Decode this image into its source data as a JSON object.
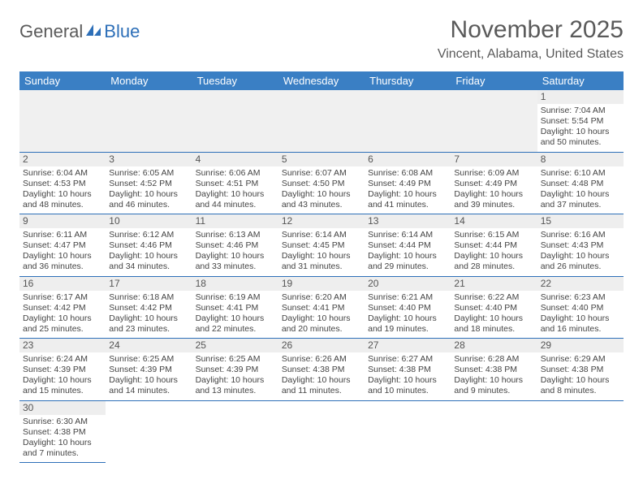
{
  "logo": {
    "part1": "General",
    "part2": "Blue"
  },
  "title": "November 2025",
  "location": "Vincent, Alabama, United States",
  "day_headers": [
    "Sunday",
    "Monday",
    "Tuesday",
    "Wednesday",
    "Thursday",
    "Friday",
    "Saturday"
  ],
  "colors": {
    "header_bg": "#3a7fc4",
    "rule": "#2d6fb8",
    "daynum_bg": "#eeeeee"
  },
  "weeks": [
    [
      null,
      null,
      null,
      null,
      null,
      null,
      {
        "n": "1",
        "sr": "Sunrise: 7:04 AM",
        "ss": "Sunset: 5:54 PM",
        "d1": "Daylight: 10 hours",
        "d2": "and 50 minutes."
      }
    ],
    [
      {
        "n": "2",
        "sr": "Sunrise: 6:04 AM",
        "ss": "Sunset: 4:53 PM",
        "d1": "Daylight: 10 hours",
        "d2": "and 48 minutes."
      },
      {
        "n": "3",
        "sr": "Sunrise: 6:05 AM",
        "ss": "Sunset: 4:52 PM",
        "d1": "Daylight: 10 hours",
        "d2": "and 46 minutes."
      },
      {
        "n": "4",
        "sr": "Sunrise: 6:06 AM",
        "ss": "Sunset: 4:51 PM",
        "d1": "Daylight: 10 hours",
        "d2": "and 44 minutes."
      },
      {
        "n": "5",
        "sr": "Sunrise: 6:07 AM",
        "ss": "Sunset: 4:50 PM",
        "d1": "Daylight: 10 hours",
        "d2": "and 43 minutes."
      },
      {
        "n": "6",
        "sr": "Sunrise: 6:08 AM",
        "ss": "Sunset: 4:49 PM",
        "d1": "Daylight: 10 hours",
        "d2": "and 41 minutes."
      },
      {
        "n": "7",
        "sr": "Sunrise: 6:09 AM",
        "ss": "Sunset: 4:49 PM",
        "d1": "Daylight: 10 hours",
        "d2": "and 39 minutes."
      },
      {
        "n": "8",
        "sr": "Sunrise: 6:10 AM",
        "ss": "Sunset: 4:48 PM",
        "d1": "Daylight: 10 hours",
        "d2": "and 37 minutes."
      }
    ],
    [
      {
        "n": "9",
        "sr": "Sunrise: 6:11 AM",
        "ss": "Sunset: 4:47 PM",
        "d1": "Daylight: 10 hours",
        "d2": "and 36 minutes."
      },
      {
        "n": "10",
        "sr": "Sunrise: 6:12 AM",
        "ss": "Sunset: 4:46 PM",
        "d1": "Daylight: 10 hours",
        "d2": "and 34 minutes."
      },
      {
        "n": "11",
        "sr": "Sunrise: 6:13 AM",
        "ss": "Sunset: 4:46 PM",
        "d1": "Daylight: 10 hours",
        "d2": "and 33 minutes."
      },
      {
        "n": "12",
        "sr": "Sunrise: 6:14 AM",
        "ss": "Sunset: 4:45 PM",
        "d1": "Daylight: 10 hours",
        "d2": "and 31 minutes."
      },
      {
        "n": "13",
        "sr": "Sunrise: 6:14 AM",
        "ss": "Sunset: 4:44 PM",
        "d1": "Daylight: 10 hours",
        "d2": "and 29 minutes."
      },
      {
        "n": "14",
        "sr": "Sunrise: 6:15 AM",
        "ss": "Sunset: 4:44 PM",
        "d1": "Daylight: 10 hours",
        "d2": "and 28 minutes."
      },
      {
        "n": "15",
        "sr": "Sunrise: 6:16 AM",
        "ss": "Sunset: 4:43 PM",
        "d1": "Daylight: 10 hours",
        "d2": "and 26 minutes."
      }
    ],
    [
      {
        "n": "16",
        "sr": "Sunrise: 6:17 AM",
        "ss": "Sunset: 4:42 PM",
        "d1": "Daylight: 10 hours",
        "d2": "and 25 minutes."
      },
      {
        "n": "17",
        "sr": "Sunrise: 6:18 AM",
        "ss": "Sunset: 4:42 PM",
        "d1": "Daylight: 10 hours",
        "d2": "and 23 minutes."
      },
      {
        "n": "18",
        "sr": "Sunrise: 6:19 AM",
        "ss": "Sunset: 4:41 PM",
        "d1": "Daylight: 10 hours",
        "d2": "and 22 minutes."
      },
      {
        "n": "19",
        "sr": "Sunrise: 6:20 AM",
        "ss": "Sunset: 4:41 PM",
        "d1": "Daylight: 10 hours",
        "d2": "and 20 minutes."
      },
      {
        "n": "20",
        "sr": "Sunrise: 6:21 AM",
        "ss": "Sunset: 4:40 PM",
        "d1": "Daylight: 10 hours",
        "d2": "and 19 minutes."
      },
      {
        "n": "21",
        "sr": "Sunrise: 6:22 AM",
        "ss": "Sunset: 4:40 PM",
        "d1": "Daylight: 10 hours",
        "d2": "and 18 minutes."
      },
      {
        "n": "22",
        "sr": "Sunrise: 6:23 AM",
        "ss": "Sunset: 4:40 PM",
        "d1": "Daylight: 10 hours",
        "d2": "and 16 minutes."
      }
    ],
    [
      {
        "n": "23",
        "sr": "Sunrise: 6:24 AM",
        "ss": "Sunset: 4:39 PM",
        "d1": "Daylight: 10 hours",
        "d2": "and 15 minutes."
      },
      {
        "n": "24",
        "sr": "Sunrise: 6:25 AM",
        "ss": "Sunset: 4:39 PM",
        "d1": "Daylight: 10 hours",
        "d2": "and 14 minutes."
      },
      {
        "n": "25",
        "sr": "Sunrise: 6:25 AM",
        "ss": "Sunset: 4:39 PM",
        "d1": "Daylight: 10 hours",
        "d2": "and 13 minutes."
      },
      {
        "n": "26",
        "sr": "Sunrise: 6:26 AM",
        "ss": "Sunset: 4:38 PM",
        "d1": "Daylight: 10 hours",
        "d2": "and 11 minutes."
      },
      {
        "n": "27",
        "sr": "Sunrise: 6:27 AM",
        "ss": "Sunset: 4:38 PM",
        "d1": "Daylight: 10 hours",
        "d2": "and 10 minutes."
      },
      {
        "n": "28",
        "sr": "Sunrise: 6:28 AM",
        "ss": "Sunset: 4:38 PM",
        "d1": "Daylight: 10 hours",
        "d2": "and 9 minutes."
      },
      {
        "n": "29",
        "sr": "Sunrise: 6:29 AM",
        "ss": "Sunset: 4:38 PM",
        "d1": "Daylight: 10 hours",
        "d2": "and 8 minutes."
      }
    ],
    [
      {
        "n": "30",
        "sr": "Sunrise: 6:30 AM",
        "ss": "Sunset: 4:38 PM",
        "d1": "Daylight: 10 hours",
        "d2": "and 7 minutes."
      },
      null,
      null,
      null,
      null,
      null,
      null
    ]
  ]
}
